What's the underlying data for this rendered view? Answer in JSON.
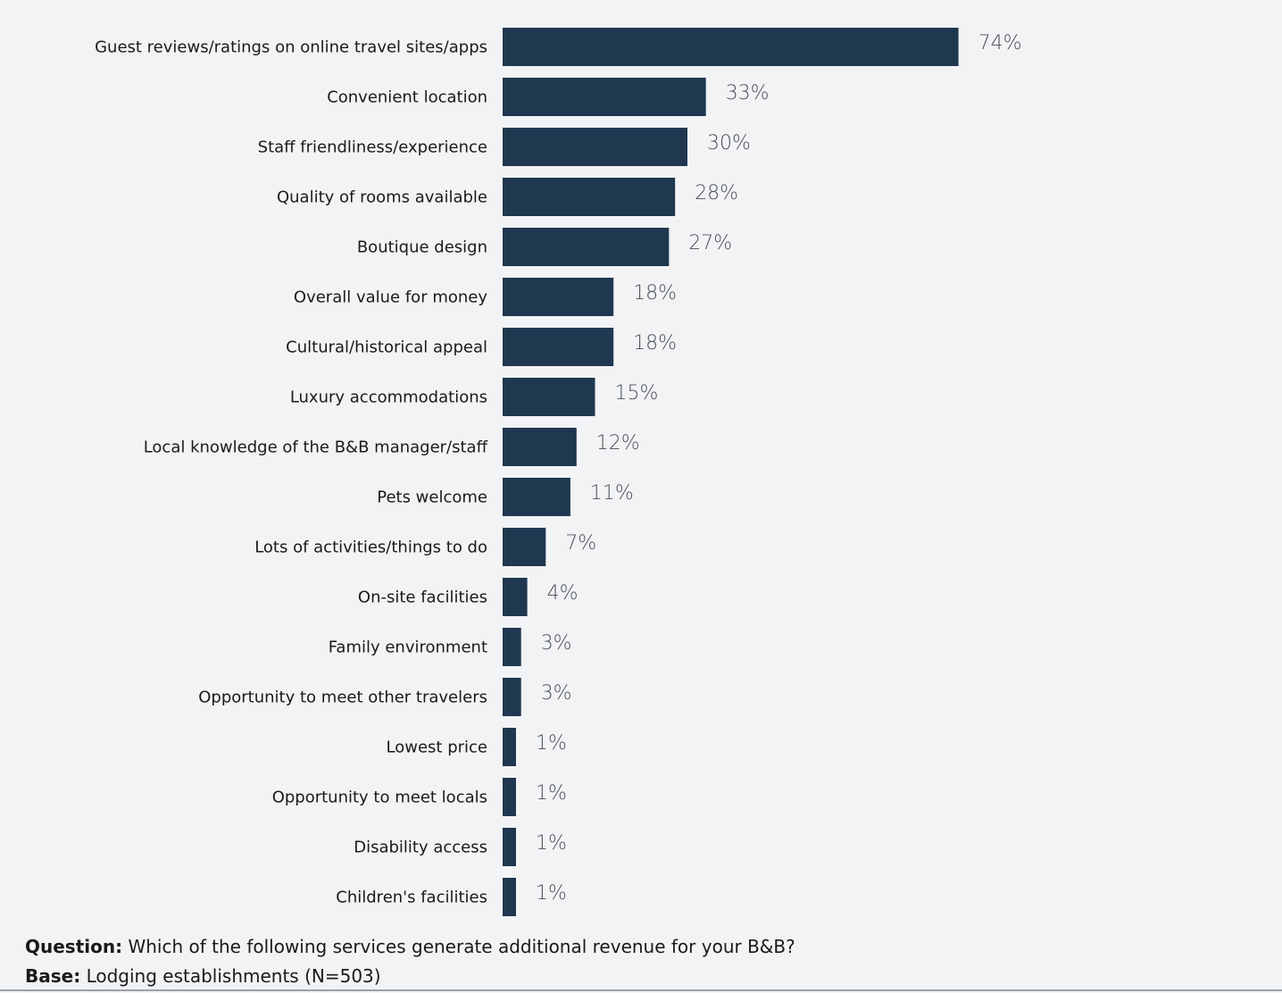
{
  "chart_data": {
    "type": "bar",
    "orientation": "horizontal",
    "categories": [
      "Guest reviews/ratings on online travel sites/apps",
      "Convenient location",
      "Staff friendliness/experience",
      "Quality of rooms available",
      "Boutique design",
      "Overall value for money",
      "Cultural/historical appeal",
      "Luxury accommodations",
      "Local knowledge of the B&B manager/staff",
      "Pets welcome",
      "Lots of activities/things to do",
      "On-site facilities",
      "Family environment",
      "Opportunity to meet other travelers",
      "Lowest price",
      "Opportunity to meet locals",
      "Disability access",
      "Children's facilities"
    ],
    "values": [
      74,
      33,
      30,
      28,
      27,
      18,
      18,
      15,
      12,
      11,
      7,
      4,
      3,
      3,
      1,
      1,
      1,
      1
    ],
    "value_labels": [
      "74%",
      "33%",
      "30%",
      "28%",
      "27%",
      "18%",
      "18%",
      "15%",
      "12%",
      "11%",
      "7%",
      "4%",
      "3%",
      "3%",
      "1%",
      "1%",
      "1%",
      "1%"
    ],
    "unit": "%",
    "xlim": [
      0,
      100
    ],
    "bar_color": "#1f3850",
    "grid": false,
    "legend": "none"
  },
  "footer": {
    "question_label": "Question:",
    "question_text": " Which of the following services generate additional revenue for your B&B?",
    "base_label": "Base:",
    "base_text": " Lodging establishments (N=503)"
  }
}
